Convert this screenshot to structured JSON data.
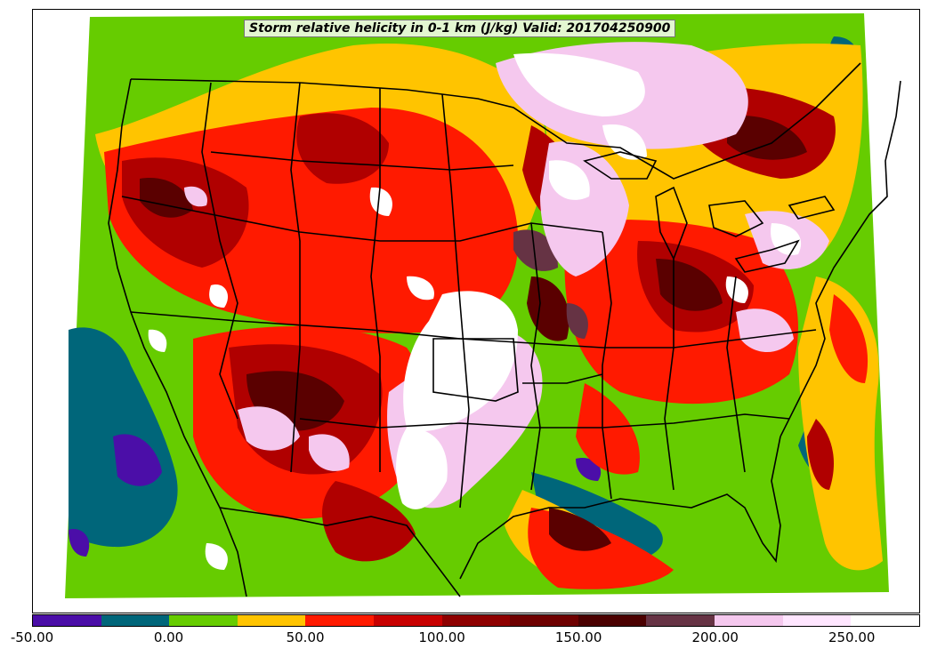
{
  "map": {
    "title": "Storm relative helicity in 0-1 km (J/kg) Valid: 2017042509",
    "title_overflow_digits": "00",
    "variable": "Storm relative helicity in 0-1 km",
    "units": "J/kg",
    "valid_time": "2017042509"
  },
  "colorbar": {
    "colors": [
      "#4b0ea8",
      "#00667a",
      "#66cc00",
      "#ffc400",
      "#ff1a00",
      "#c80000",
      "#8e0000",
      "#6e0000",
      "#4a0000",
      "#663344",
      "#f5c8ee",
      "#ffe6ff",
      "#ffffff"
    ],
    "ticks": [
      "-50.00",
      "0.00",
      "50.00",
      "100.00",
      "150.00",
      "200.00",
      "250.00"
    ]
  },
  "chart_data": {
    "type": "heatmap",
    "title": "Storm relative helicity in 0-1 km (J/kg) Valid: 201704250900",
    "colorbar_range": [
      -50,
      275
    ],
    "colorbar_ticks": [
      -50,
      0,
      50,
      100,
      150,
      200,
      250
    ],
    "color_interval": 25
  }
}
